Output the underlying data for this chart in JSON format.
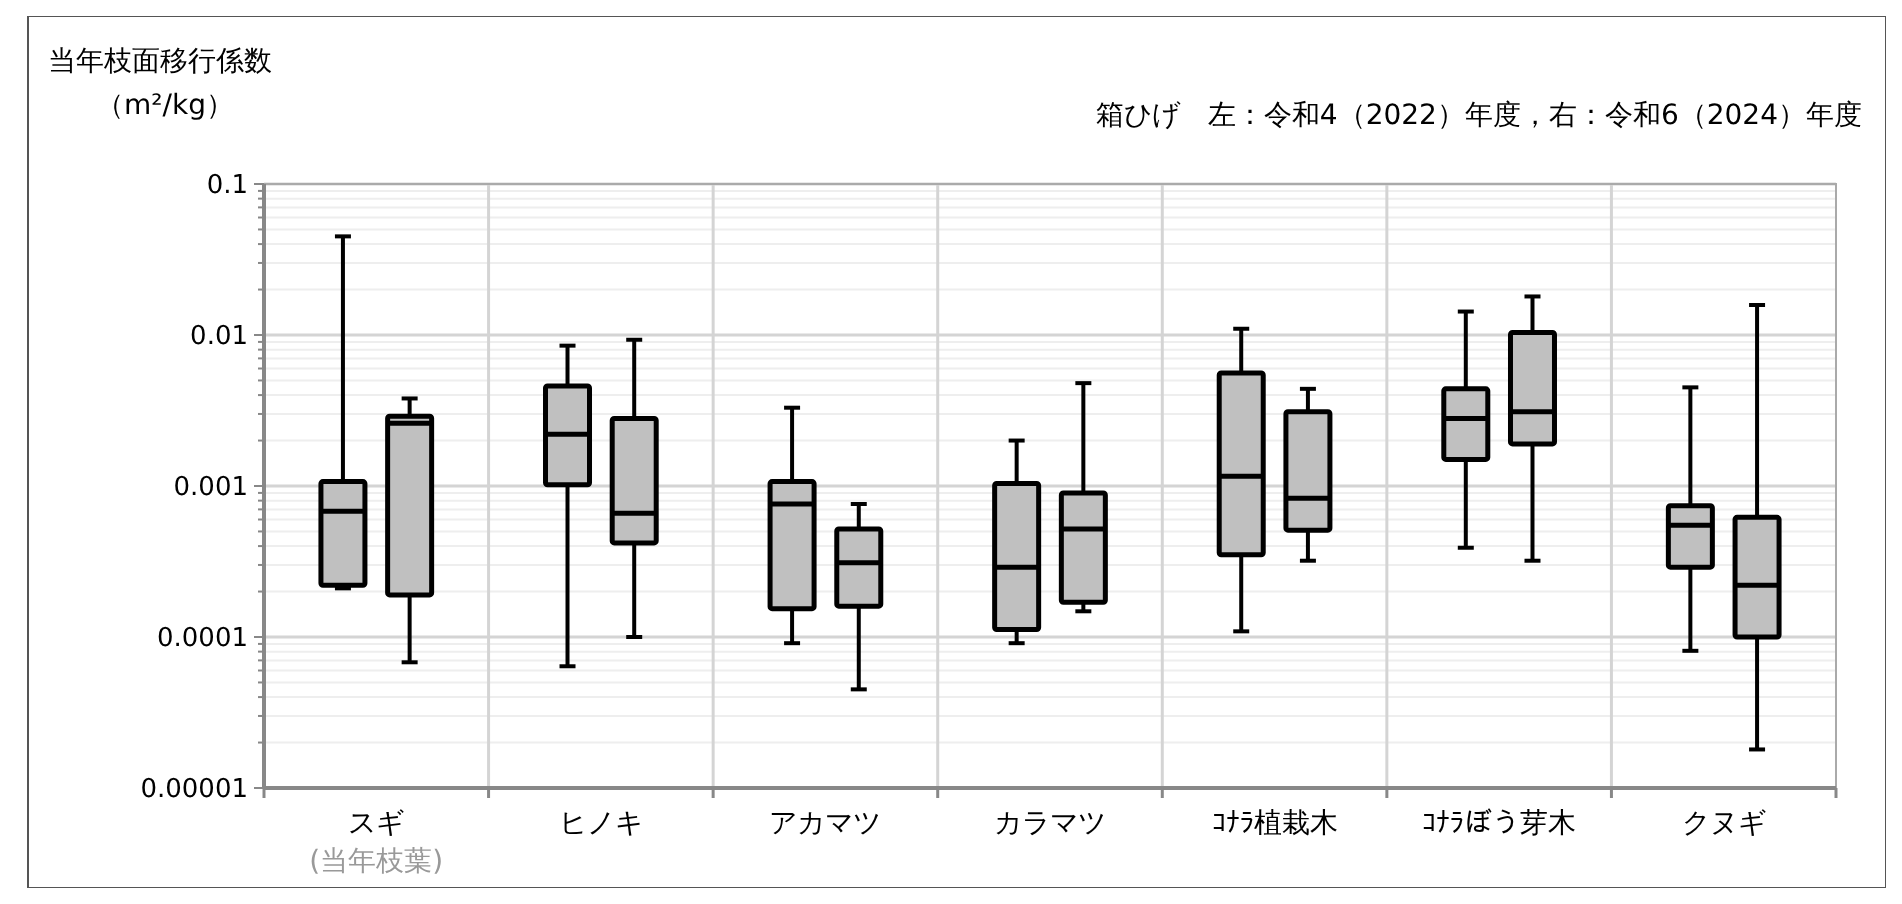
{
  "chart_data": {
    "type": "box",
    "ylabel": "当年枝面移行係数（m²/kg）",
    "annotations": [
      "箱ひげ　左：令和4（2022）年度，右：令和6（2024）年度"
    ],
    "categories": [
      "スギ\n(当年枝葉)",
      "ヒノキ",
      "アカマツ",
      "カラマツ",
      "ｺﾅﾗ植栽木",
      "ｺﾅﾗぼう芽木",
      "クヌギ"
    ],
    "log": true,
    "grid": true,
    "ylim": [
      1e-05,
      0.1
    ],
    "yticks": [
      {
        "value": 1e-05,
        "label": "0.00001"
      },
      {
        "value": 2e-05,
        "label": null
      },
      {
        "value": 3e-05,
        "label": null
      },
      {
        "value": 4e-05,
        "label": null
      },
      {
        "value": 5e-05,
        "label": null
      },
      {
        "value": 6e-05,
        "label": null
      },
      {
        "value": 7e-05,
        "label": null
      },
      {
        "value": 8e-05,
        "label": null
      },
      {
        "value": 9e-05,
        "label": null
      },
      0.0001,
      {
        "value": 0.0002,
        "label": null
      },
      {
        "value": 0.0003,
        "label": null
      },
      {
        "value": 0.0004,
        "label": null
      },
      {
        "value": 0.0005,
        "label": null
      },
      {
        "value": 0.0006,
        "label": null
      },
      {
        "value": 0.0007,
        "label": null
      },
      {
        "value": 0.0008,
        "label": null
      },
      {
        "value": 0.0009,
        "label": null
      },
      0.001,
      {
        "value": 0.002,
        "label": null
      },
      {
        "value": 0.003,
        "label": null
      },
      {
        "value": 0.004,
        "label": null
      },
      {
        "value": 0.005,
        "label": null
      },
      {
        "value": 0.006,
        "label": null
      },
      {
        "value": 0.007,
        "label": null
      },
      {
        "value": 0.008,
        "label": null
      },
      {
        "value": 0.009,
        "label": null
      },
      0.01,
      {
        "value": 0.02,
        "label": null
      },
      {
        "value": 0.03,
        "label": null
      },
      {
        "value": 0.04,
        "label": null
      },
      {
        "value": 0.05,
        "label": null
      },
      {
        "value": 0.06,
        "label": null
      },
      {
        "value": 0.07,
        "label": null
      },
      {
        "value": 0.08,
        "label": null
      },
      {
        "value": 0.09,
        "label": null
      },
      0.1
    ],
    "series": [
      {
        "color": "#c0c0c0",
        "boxes": [
          {
            "low": 0.00021,
            "q1": 0.00022,
            "median": 0.00068,
            "q3": 0.00107,
            "high": 0.045
          },
          {
            "low": 6.4e-05,
            "q1": 0.00102,
            "median": 0.0022,
            "q3": 0.0046,
            "high": 0.0085
          },
          {
            "low": 9.1e-05,
            "q1": 0.000154,
            "median": 0.00076,
            "q3": 0.00107,
            "high": 0.0033
          },
          {
            "low": 9.1e-05,
            "q1": 0.000112,
            "median": 0.00029,
            "q3": 0.00104,
            "high": 0.002
          },
          {
            "low": 0.000109,
            "q1": 0.00035,
            "median": 0.00116,
            "q3": 0.0056,
            "high": 0.011
          },
          {
            "low": 0.00039,
            "q1": 0.0015,
            "median": 0.0028,
            "q3": 0.0044,
            "high": 0.0143
          },
          {
            "low": 8.1e-05,
            "q1": 0.00029,
            "median": 0.00055,
            "q3": 0.00074,
            "high": 0.0045
          }
        ]
      },
      {
        "color": "#c0c0c0",
        "boxes": [
          {
            "low": 6.8e-05,
            "q1": 0.00019,
            "median": 0.0026,
            "q3": 0.0029,
            "high": 0.0038
          },
          {
            "low": 0.0001,
            "q1": 0.00042,
            "median": 0.00066,
            "q3": 0.0028,
            "high": 0.0093
          },
          {
            "low": 4.5e-05,
            "q1": 0.00016,
            "median": 0.00031,
            "q3": 0.00052,
            "high": 0.00076
          },
          {
            "low": 0.000148,
            "q1": 0.00017,
            "median": 0.00052,
            "q3": 0.0009,
            "high": 0.0048
          },
          {
            "low": 0.00032,
            "q1": 0.00051,
            "median": 0.00083,
            "q3": 0.0031,
            "high": 0.0044
          },
          {
            "low": 0.00032,
            "q1": 0.0019,
            "median": 0.0031,
            "q3": 0.0104,
            "high": 0.018
          },
          {
            "low": 1.8e-05,
            "q1": 0.0001,
            "median": 0.00022,
            "q3": 0.00062,
            "high": 0.0158
          }
        ]
      }
    ]
  }
}
